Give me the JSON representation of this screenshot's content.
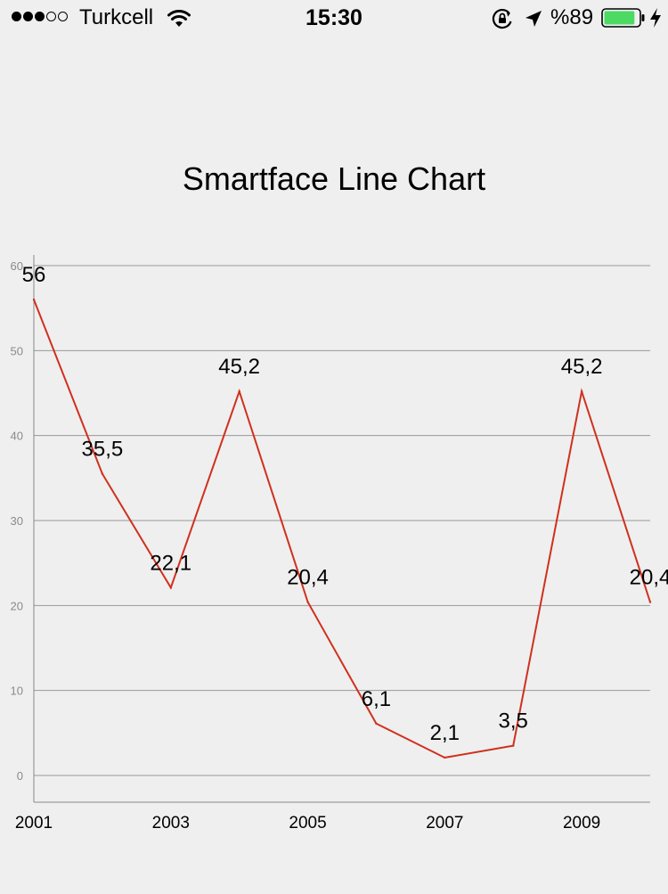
{
  "status_bar": {
    "signal_filled": 3,
    "signal_total": 5,
    "carrier": "Turkcell",
    "time": "15:30",
    "battery_percent": "%89",
    "battery_level": 0.89,
    "battery_color": "#4cd964",
    "icons": [
      "signal-dots-icon",
      "wifi-icon",
      "rotation-lock-icon",
      "location-arrow-icon",
      "battery-icon",
      "charging-bolt-icon"
    ]
  },
  "chart_data": {
    "type": "line",
    "title": "Smartface Line Chart",
    "x": [
      2001,
      2002,
      2003,
      2004,
      2005,
      2006,
      2007,
      2008,
      2009,
      2010
    ],
    "x_tick_labels": [
      "2001",
      "2003",
      "2005",
      "2007",
      "2009"
    ],
    "series": [
      {
        "values": [
          56,
          35.5,
          22.1,
          45.2,
          20.4,
          6.1,
          2.1,
          3.5,
          45.2,
          20.4
        ],
        "labels": [
          "56",
          "35,5",
          "22,1",
          "45,2",
          "20,4",
          "6,1",
          "2,1",
          "3,5",
          "45,2",
          "20,4"
        ],
        "color": "#d0301e"
      }
    ],
    "y_ticks": [
      0,
      10,
      20,
      30,
      40,
      50,
      60
    ],
    "ylim": [
      0,
      60
    ],
    "xlim": [
      2001,
      2010
    ],
    "grid": true,
    "legend": "none",
    "xlabel": "",
    "ylabel": "",
    "grid_color": "#9a9a9a",
    "axis_color": "#8a8a8a"
  }
}
